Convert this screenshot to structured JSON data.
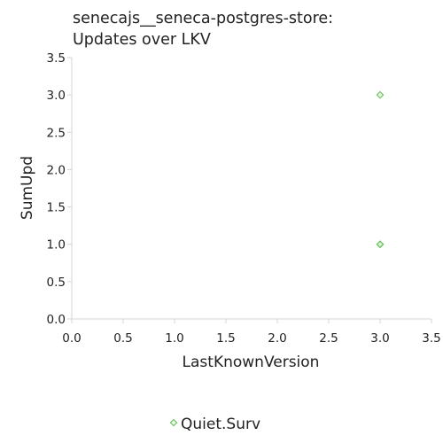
{
  "chart_data": {
    "type": "scatter",
    "title_lines": [
      "senecajs__seneca-postgres-store:",
      "Updates over LKV"
    ],
    "xlabel": "LastKnownVersion",
    "ylabel": "SumUpd",
    "xlim": [
      0.0,
      3.5
    ],
    "ylim": [
      0.0,
      3.5
    ],
    "x_ticks": [
      "0.0",
      "0.5",
      "1.0",
      "1.5",
      "2.0",
      "2.5",
      "3.0",
      "3.5"
    ],
    "y_ticks": [
      "0.0",
      "0.5",
      "1.0",
      "1.5",
      "2.0",
      "2.5",
      "3.0",
      "3.5"
    ],
    "grid": false,
    "legend_position": "bottom-center",
    "series": [
      {
        "name": "Quiet.Surv",
        "color": "#6abf5e",
        "marker": "diamond",
        "points": [
          {
            "x": 3.0,
            "y": 3.0
          },
          {
            "x": 3.0,
            "y": 1.0
          },
          {
            "x": 3.0,
            "y": 1.0
          }
        ]
      }
    ]
  }
}
